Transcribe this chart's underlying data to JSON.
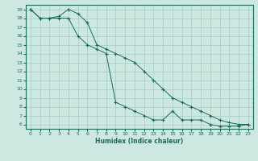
{
  "xlabel": "Humidex (Indice chaleur)",
  "bg_color": "#cce8e0",
  "grid_color": "#a8ccc8",
  "line_color": "#1a6b5a",
  "marker": "+",
  "xlim": [
    -0.5,
    23.5
  ],
  "ylim": [
    5.5,
    19.5
  ],
  "xticks": [
    0,
    1,
    2,
    3,
    4,
    5,
    6,
    7,
    8,
    9,
    10,
    11,
    12,
    13,
    14,
    15,
    16,
    17,
    18,
    19,
    20,
    21,
    22,
    23
  ],
  "yticks": [
    6,
    7,
    8,
    9,
    10,
    11,
    12,
    13,
    14,
    15,
    16,
    17,
    18,
    19
  ],
  "line1_x": [
    0,
    1,
    2,
    3,
    4,
    5,
    6,
    7,
    8,
    9,
    10,
    11,
    12,
    13,
    14,
    15,
    16,
    17,
    18,
    19,
    20,
    21,
    22,
    23
  ],
  "line1_y": [
    19,
    18,
    18,
    18.2,
    19,
    18.5,
    17.5,
    15,
    14.5,
    14,
    13.5,
    13,
    12,
    11,
    10,
    9,
    8.5,
    8,
    7.5,
    7,
    6.5,
    6.2,
    6,
    6
  ],
  "line2_x": [
    0,
    1,
    2,
    3,
    4,
    5,
    6,
    7,
    8,
    9,
    10,
    11,
    12,
    13,
    14,
    15,
    16,
    17,
    18,
    19,
    20,
    21,
    22,
    23
  ],
  "line2_y": [
    19,
    18,
    18,
    18,
    18,
    16,
    15,
    14.5,
    14,
    8.5,
    8,
    7.5,
    7,
    6.5,
    6.5,
    7.5,
    6.5,
    6.5,
    6.5,
    6,
    5.8,
    5.8,
    5.8,
    6
  ]
}
